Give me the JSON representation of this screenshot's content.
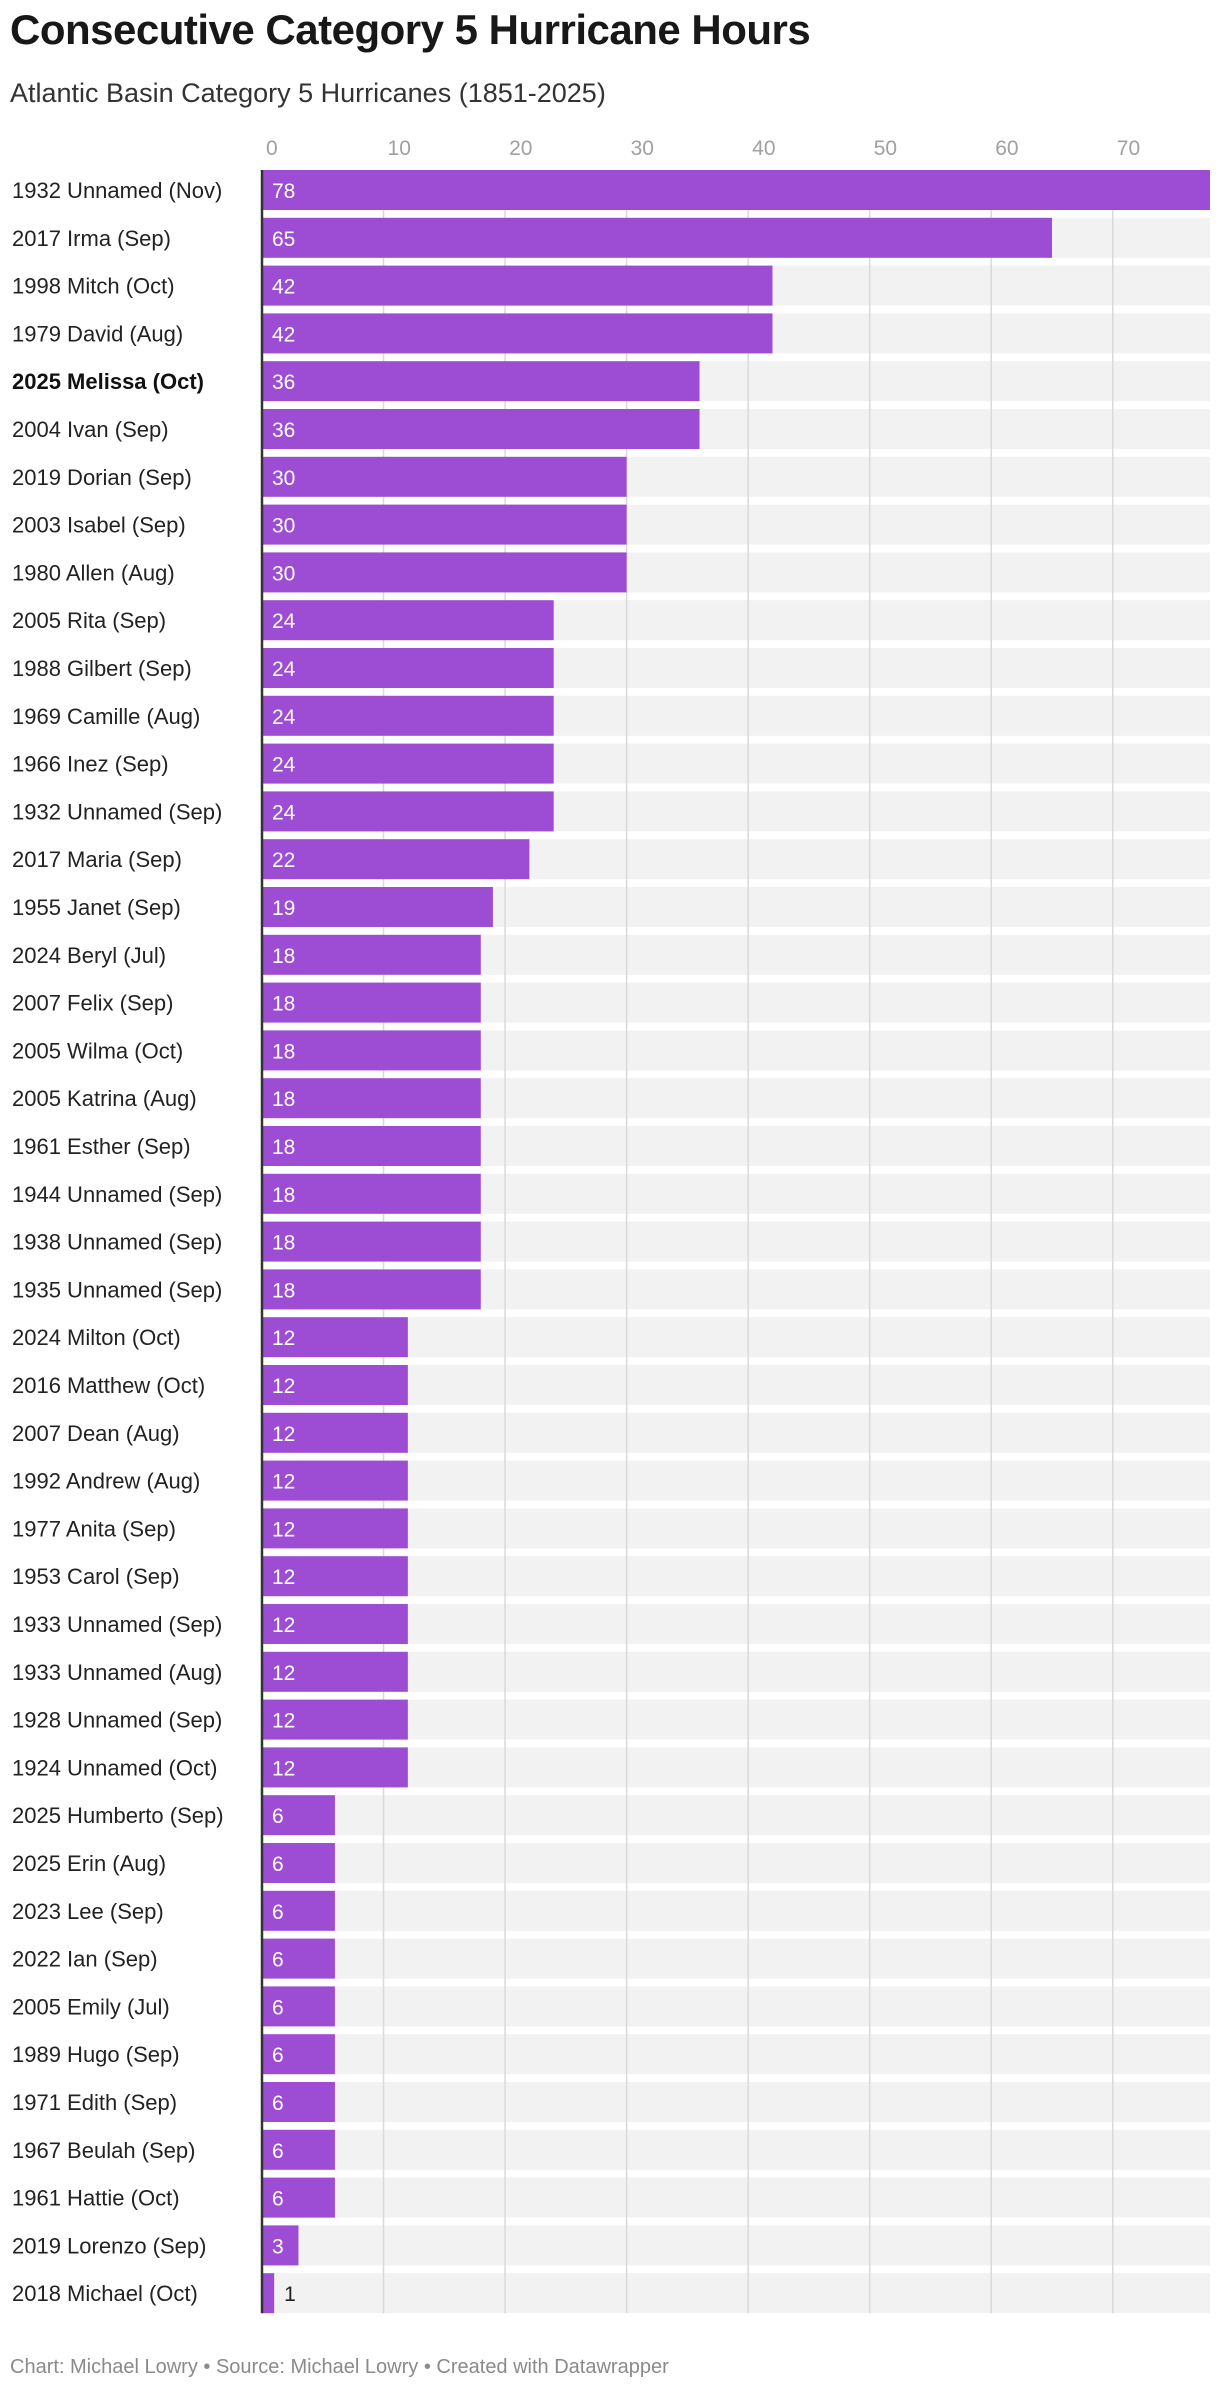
{
  "title": "Consecutive Category 5 Hurricane Hours",
  "subtitle": "Atlantic Basin Category 5 Hurricanes (1851-2025)",
  "footer": {
    "chart_credit": "Chart: Michael Lowry",
    "source": "Source: Michael Lowry",
    "created_with": "Created with Datawrapper",
    "separator": " • "
  },
  "colors": {
    "bar": "#9d4dd3",
    "row_background": "#f2f2f2",
    "gridline": "#d9d9d9",
    "axis": "#333333"
  },
  "chart_data": {
    "type": "bar",
    "orientation": "horizontal",
    "title": "Consecutive Category 5 Hurricane Hours",
    "subtitle": "Atlantic Basin Category 5 Hurricanes (1851-2025)",
    "xlabel": "",
    "ylabel": "",
    "xlim": [
      0,
      78
    ],
    "xticks": [
      0,
      10,
      20,
      30,
      40,
      50,
      60,
      70
    ],
    "grid": true,
    "highlight": [
      "2025 Melissa (Oct)"
    ],
    "categories": [
      "1932 Unnamed (Nov)",
      "2017 Irma (Sep)",
      "1998 Mitch (Oct)",
      "1979 David (Aug)",
      "2025 Melissa (Oct)",
      "2004 Ivan (Sep)",
      "2019 Dorian (Sep)",
      "2003 Isabel (Sep)",
      "1980 Allen (Aug)",
      "2005 Rita (Sep)",
      "1988 Gilbert (Sep)",
      "1969 Camille (Aug)",
      "1966 Inez (Sep)",
      "1932 Unnamed (Sep)",
      "2017 Maria (Sep)",
      "1955 Janet (Sep)",
      "2024 Beryl (Jul)",
      "2007 Felix (Sep)",
      "2005 Wilma (Oct)",
      "2005 Katrina (Aug)",
      "1961 Esther (Sep)",
      "1944 Unnamed (Sep)",
      "1938 Unnamed (Sep)",
      "1935 Unnamed (Sep)",
      "2024 Milton (Oct)",
      "2016 Matthew (Oct)",
      "2007 Dean (Aug)",
      "1992 Andrew (Aug)",
      "1977 Anita (Sep)",
      "1953 Carol (Sep)",
      "1933 Unnamed (Sep)",
      "1933 Unnamed (Aug)",
      "1928 Unnamed (Sep)",
      "1924 Unnamed (Oct)",
      "2025 Humberto (Sep)",
      "2025 Erin (Aug)",
      "2023 Lee (Sep)",
      "2022 Ian (Sep)",
      "2005 Emily (Jul)",
      "1989 Hugo (Sep)",
      "1971 Edith (Sep)",
      "1967 Beulah (Sep)",
      "1961 Hattie (Oct)",
      "2019 Lorenzo (Sep)",
      "2018 Michael (Oct)"
    ],
    "values": [
      78,
      65,
      42,
      42,
      36,
      36,
      30,
      30,
      30,
      24,
      24,
      24,
      24,
      24,
      22,
      19,
      18,
      18,
      18,
      18,
      18,
      18,
      18,
      18,
      12,
      12,
      12,
      12,
      12,
      12,
      12,
      12,
      12,
      12,
      6,
      6,
      6,
      6,
      6,
      6,
      6,
      6,
      6,
      3,
      1
    ]
  }
}
